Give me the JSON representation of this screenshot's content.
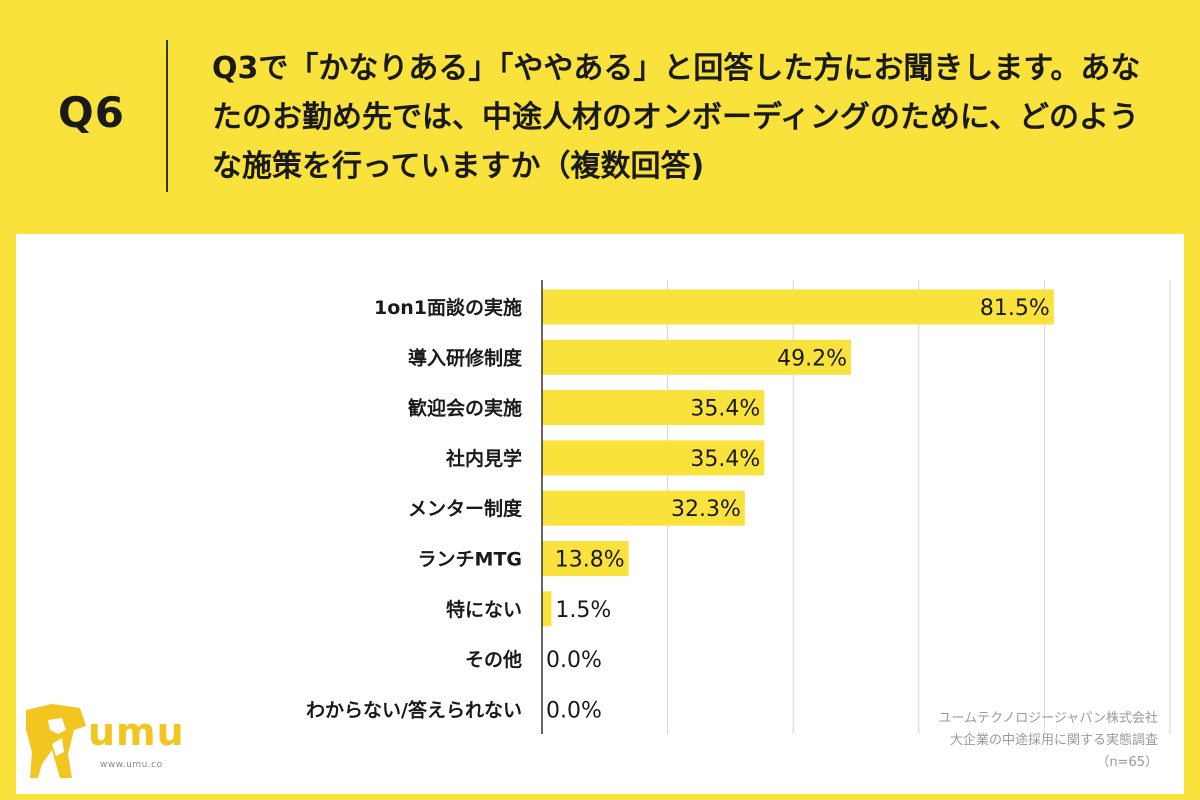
{
  "question": {
    "label": "Q6",
    "text": "Q3で「かなりある」「ややある」と回答した方にお聞きします。あなたのお勤め先では、中途人材のオンボーディングのために、どのような施策を行っていますか（複数回答)"
  },
  "chart_data": {
    "type": "bar",
    "orientation": "horizontal",
    "categories": [
      "1on1面談の実施",
      "導入研修制度",
      "歓迎会の実施",
      "社内見学",
      "メンター制度",
      "ランチMTG",
      "特にない",
      "その他",
      "わからない/答えられない"
    ],
    "values": [
      81.5,
      49.2,
      35.4,
      35.4,
      32.3,
      13.8,
      1.5,
      0.0,
      0.0
    ],
    "value_labels": [
      "81.5%",
      "49.2%",
      "35.4%",
      "35.4%",
      "32.3%",
      "13.8%",
      "1.5%",
      "0.0%",
      "0.0%"
    ],
    "xlim": [
      0,
      100
    ],
    "grid": true,
    "bar_color": "#F8E23B"
  },
  "logo": {
    "name": "umu",
    "url": "www.umu.co",
    "color": "#F2C61F"
  },
  "source": {
    "line1": "ユームテクノロジージャパン株式会社",
    "line2": "大企業の中途採用に関する実態調査",
    "line3": "（n=65）"
  }
}
